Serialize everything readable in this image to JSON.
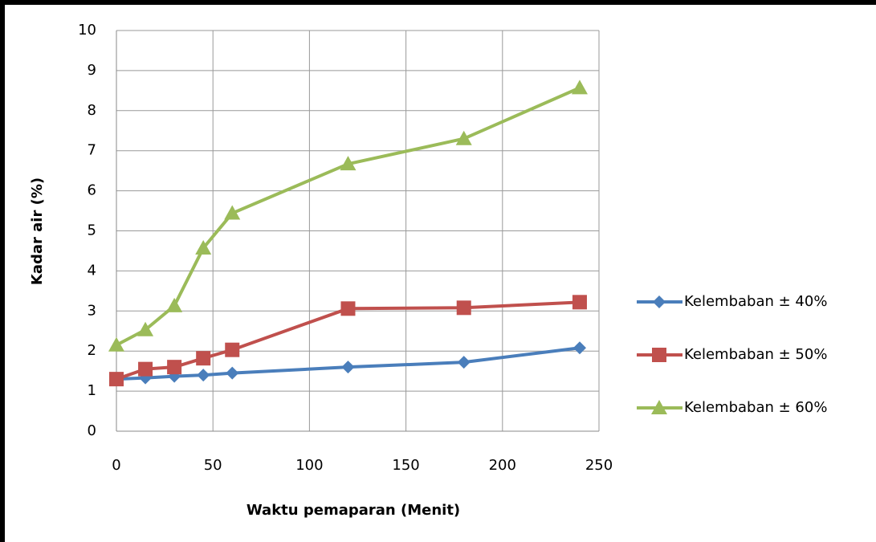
{
  "chart_data": {
    "type": "line",
    "x_label": "Waktu pemaparan (Menit)",
    "y_label": "Kadar air (%)",
    "x": [
      0,
      15,
      30,
      45,
      60,
      120,
      180,
      240
    ],
    "series": [
      {
        "name": "Kelembaban ± 40%",
        "color": "#4a7ebb",
        "marker": "diamond",
        "values": [
          1.3,
          1.33,
          1.37,
          1.4,
          1.45,
          1.6,
          1.72,
          2.08
        ]
      },
      {
        "name": "Kelembaban ± 50%",
        "color": "#c0504d",
        "marker": "square",
        "values": [
          1.3,
          1.55,
          1.6,
          1.82,
          2.03,
          3.06,
          3.08,
          3.22
        ]
      },
      {
        "name": "Kelembaban ± 60%",
        "color": "#9bbb59",
        "marker": "triangle",
        "values": [
          2.15,
          2.53,
          3.13,
          4.57,
          5.44,
          6.67,
          7.3,
          8.57
        ]
      }
    ],
    "xlim": [
      0,
      250
    ],
    "xticks": [
      0,
      50,
      100,
      150,
      200,
      250
    ],
    "ylim": [
      0,
      10
    ],
    "yticks": [
      0,
      1,
      2,
      3,
      4,
      5,
      6,
      7,
      8,
      9,
      10
    ],
    "grid": true,
    "legend": "right"
  }
}
